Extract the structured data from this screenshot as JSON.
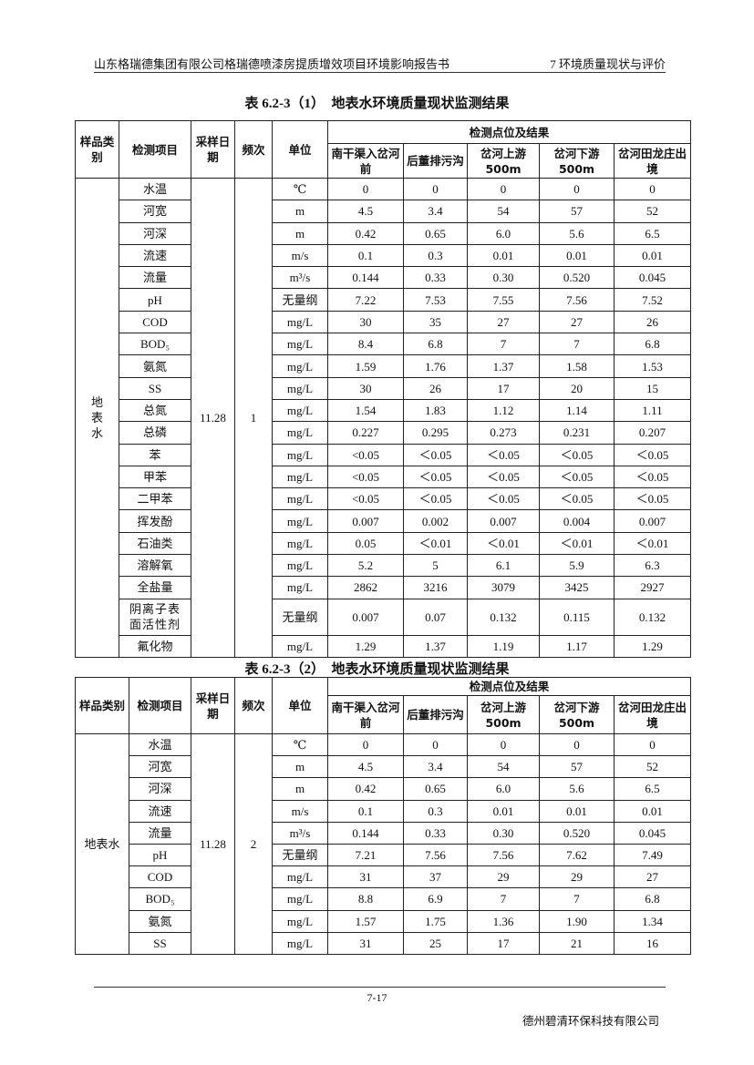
{
  "header": {
    "left": "山东格瑞德集团有限公司格瑞德喷漆房提质增效项目环境影响报告书",
    "right": "7 环境质量现状与评价"
  },
  "tables": [
    {
      "title": "表 6.2-3（1）　地表水环境质量现状监测结果",
      "headers": {
        "sample_type": "样品类别",
        "item": "检测项目",
        "date": "采样日期",
        "freq": "频次",
        "unit": "单位",
        "group": "检测点位及结果",
        "sites": [
          "南干渠入岔河前",
          "后董排污沟",
          "岔河上游500m",
          "岔河下游500m",
          "岔河田龙庄出境"
        ]
      },
      "sample_type": "地表水",
      "date": "11.28",
      "freq": "1",
      "rows": [
        {
          "item": "水温",
          "unit": "℃",
          "values": [
            "0",
            "0",
            "0",
            "0",
            "0"
          ]
        },
        {
          "item": "河宽",
          "unit": "m",
          "values": [
            "4.5",
            "3.4",
            "54",
            "57",
            "52"
          ]
        },
        {
          "item": "河深",
          "unit": "m",
          "values": [
            "0.42",
            "0.65",
            "6.0",
            "5.6",
            "6.5"
          ]
        },
        {
          "item": "流速",
          "unit": "m/s",
          "values": [
            "0.1",
            "0.3",
            "0.01",
            "0.01",
            "0.01"
          ]
        },
        {
          "item": "流量",
          "unit": "m³/s",
          "values": [
            "0.144",
            "0.33",
            "0.30",
            "0.520",
            "0.045"
          ]
        },
        {
          "item": "pH",
          "unit": "无量纲",
          "values": [
            "7.22",
            "7.53",
            "7.55",
            "7.56",
            "7.52"
          ]
        },
        {
          "item": "COD",
          "unit": "mg/L",
          "values": [
            "30",
            "35",
            "27",
            "27",
            "26"
          ]
        },
        {
          "item": "BOD₅",
          "unit": "mg/L",
          "values": [
            "8.4",
            "6.8",
            "7",
            "7",
            "6.8"
          ]
        },
        {
          "item": "氨氮",
          "unit": "mg/L",
          "values": [
            "1.59",
            "1.76",
            "1.37",
            "1.58",
            "1.53"
          ]
        },
        {
          "item": "SS",
          "unit": "mg/L",
          "values": [
            "30",
            "26",
            "17",
            "20",
            "15"
          ]
        },
        {
          "item": "总氮",
          "unit": "mg/L",
          "values": [
            "1.54",
            "1.83",
            "1.12",
            "1.14",
            "1.11"
          ]
        },
        {
          "item": "总磷",
          "unit": "mg/L",
          "values": [
            "0.227",
            "0.295",
            "0.273",
            "0.231",
            "0.207"
          ]
        },
        {
          "item": "苯",
          "unit": "mg/L",
          "values": [
            "˂0.05",
            "＜0.05",
            "＜0.05",
            "＜0.05",
            "＜0.05"
          ]
        },
        {
          "item": "甲苯",
          "unit": "mg/L",
          "values": [
            "˂0.05",
            "＜0.05",
            "＜0.05",
            "＜0.05",
            "＜0.05"
          ]
        },
        {
          "item": "二甲苯",
          "unit": "mg/L",
          "values": [
            "˂0.05",
            "＜0.05",
            "＜0.05",
            "＜0.05",
            "＜0.05"
          ]
        },
        {
          "item": "挥发酚",
          "unit": "mg/L",
          "values": [
            "0.007",
            "0.002",
            "0.007",
            "0.004",
            "0.007"
          ]
        },
        {
          "item": "石油类",
          "unit": "mg/L",
          "values": [
            "0.05",
            "＜0.01",
            "＜0.01",
            "＜0.01",
            "＜0.01"
          ]
        },
        {
          "item": "溶解氧",
          "unit": "mg/L",
          "values": [
            "5.2",
            "5",
            "6.1",
            "5.9",
            "6.3"
          ]
        },
        {
          "item": "全盐量",
          "unit": "mg/L",
          "values": [
            "2862",
            "3216",
            "3079",
            "3425",
            "2927"
          ]
        },
        {
          "item": "阴离子表面活性剂",
          "unit": "无量纲",
          "values": [
            "0.007",
            "0.07",
            "0.132",
            "0.115",
            "0.132"
          ]
        },
        {
          "item": "氟化物",
          "unit": "mg/L",
          "values": [
            "1.29",
            "1.37",
            "1.19",
            "1.17",
            "1.29"
          ]
        }
      ]
    },
    {
      "title": "表 6.2-3（2）　地表水环境质量现状监测结果",
      "headers": {
        "sample_type": "样品类别",
        "item": "检测项目",
        "date": "采样日期",
        "freq": "频次",
        "unit": "单位",
        "group": "检测点位及结果",
        "sites": [
          "南干渠入岔河前",
          "后董排污沟",
          "岔河上游500m",
          "岔河下游500m",
          "岔河田龙庄出境"
        ]
      },
      "sample_type": "地表水",
      "date": "11.28",
      "freq": "2",
      "rows": [
        {
          "item": "水温",
          "unit": "℃",
          "values": [
            "0",
            "0",
            "0",
            "0",
            "0"
          ]
        },
        {
          "item": "河宽",
          "unit": "m",
          "values": [
            "4.5",
            "3.4",
            "54",
            "57",
            "52"
          ]
        },
        {
          "item": "河深",
          "unit": "m",
          "values": [
            "0.42",
            "0.65",
            "6.0",
            "5.6",
            "6.5"
          ]
        },
        {
          "item": "流速",
          "unit": "m/s",
          "values": [
            "0.1",
            "0.3",
            "0.01",
            "0.01",
            "0.01"
          ]
        },
        {
          "item": "流量",
          "unit": "m³/s",
          "values": [
            "0.144",
            "0.33",
            "0.30",
            "0.520",
            "0.045"
          ]
        },
        {
          "item": "pH",
          "unit": "无量纲",
          "values": [
            "7.21",
            "7.56",
            "7.56",
            "7.62",
            "7.49"
          ]
        },
        {
          "item": "COD",
          "unit": "mg/L",
          "values": [
            "31",
            "37",
            "29",
            "29",
            "27"
          ]
        },
        {
          "item": "BOD₅",
          "unit": "mg/L",
          "values": [
            "8.8",
            "6.9",
            "7",
            "7",
            "6.8"
          ]
        },
        {
          "item": "氨氮",
          "unit": "mg/L",
          "values": [
            "1.57",
            "1.75",
            "1.36",
            "1.90",
            "1.34"
          ]
        },
        {
          "item": "SS",
          "unit": "mg/L",
          "values": [
            "31",
            "25",
            "17",
            "21",
            "16"
          ]
        }
      ]
    }
  ],
  "footer": {
    "page": "7-17",
    "company": "德州碧清环保科技有限公司"
  }
}
